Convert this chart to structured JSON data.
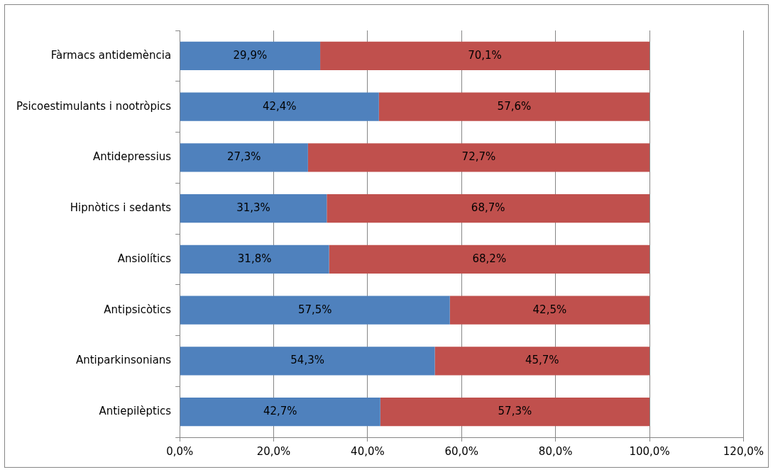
{
  "chart_data": {
    "type": "bar",
    "orientation": "horizontal",
    "stacked": true,
    "categories": [
      "Fàrmacs antidemència",
      "Psicoestimulants i nootròpics",
      "Antidepressius",
      "Hipnòtics i sedants",
      "Ansiolítics",
      "Antipsicòtics",
      "Antiparkinsonians",
      "Antiepilèptics"
    ],
    "series": [
      {
        "color": "#4f81bd",
        "values": [
          29.9,
          42.4,
          27.3,
          31.3,
          31.8,
          57.5,
          54.3,
          42.7
        ],
        "value_labels": [
          "29,9%",
          "42,4%",
          "27,3%",
          "31,3%",
          "31,8%",
          "57,5%",
          "54,3%",
          "42,7%"
        ]
      },
      {
        "color": "#c0504d",
        "values": [
          70.1,
          57.6,
          72.7,
          68.7,
          68.2,
          42.5,
          45.7,
          57.3
        ],
        "value_labels": [
          "70,1%",
          "57,6%",
          "72,7%",
          "68,7%",
          "68,2%",
          "42,5%",
          "45,7%",
          "57,3%"
        ]
      }
    ],
    "xlim": [
      0,
      120
    ],
    "xticks": [
      {
        "value": 0,
        "label": "0,0%"
      },
      {
        "value": 20,
        "label": "20,0%"
      },
      {
        "value": 40,
        "label": "40,0%"
      },
      {
        "value": 60,
        "label": "60,0%"
      },
      {
        "value": 80,
        "label": "80,0%"
      },
      {
        "value": 100,
        "label": "100,0%"
      },
      {
        "value": 120,
        "label": "120,0%"
      }
    ],
    "grid": "x",
    "legend": false
  }
}
